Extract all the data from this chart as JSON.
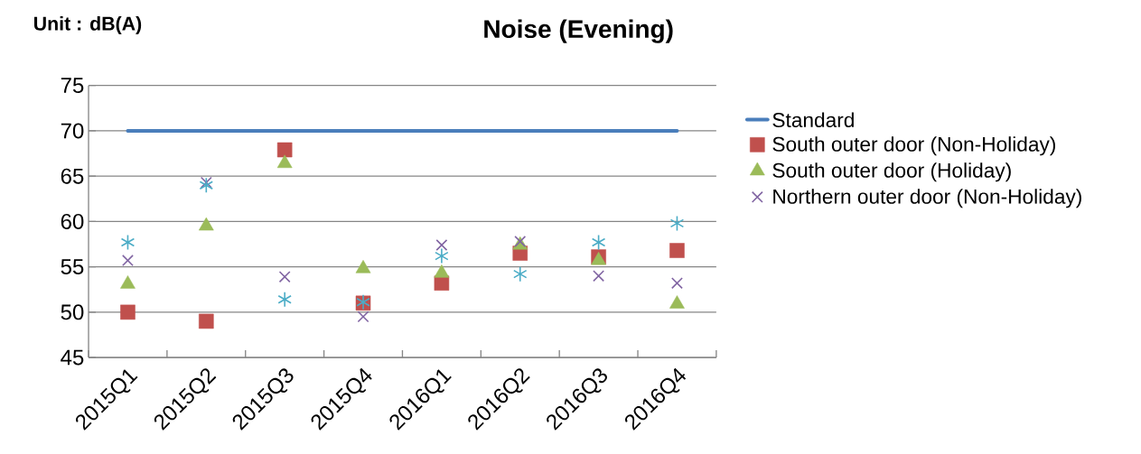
{
  "chart_data": {
    "type": "scatter",
    "title": "Noise (Evening)",
    "annotations": [
      "Unit : dB(A)"
    ],
    "categories": [
      "2015Q1",
      "2015Q2",
      "2015Q3",
      "2015Q4",
      "2016Q1",
      "2016Q2",
      "2016Q3",
      "2016Q4"
    ],
    "series": [
      {
        "name": "Standard",
        "type": "line",
        "marker": "none",
        "color": "#4a7ebb",
        "values": [
          70,
          70,
          70,
          70,
          70,
          70,
          70,
          70
        ]
      },
      {
        "name": "South outer door (Non-Holiday)",
        "marker": "square",
        "color": "#c0504d",
        "values": [
          50.0,
          49.0,
          67.9,
          51.0,
          53.2,
          56.5,
          56.1,
          56.8
        ]
      },
      {
        "name": "South outer door (Holiday)",
        "marker": "triangle",
        "color": "#9bbb59",
        "values": [
          53.1,
          59.5,
          66.4,
          54.8,
          54.3,
          57.4,
          55.7,
          50.9
        ]
      },
      {
        "name": "Northern outer door (Non-Holiday)",
        "marker": "cross",
        "color": "#8064a2",
        "values": [
          55.7,
          64.3,
          53.9,
          49.5,
          57.4,
          57.8,
          54.0,
          53.2
        ]
      },
      {
        "color": "#4bacc6",
        "values": [
          57.7,
          64.0,
          51.4,
          51.1,
          56.2,
          54.2,
          57.7,
          59.8
        ]
      }
    ],
    "ylim": [
      45,
      75
    ],
    "yticks": [
      45,
      50,
      55,
      60,
      65,
      70,
      75
    ],
    "grid": "y",
    "legend": "right"
  }
}
